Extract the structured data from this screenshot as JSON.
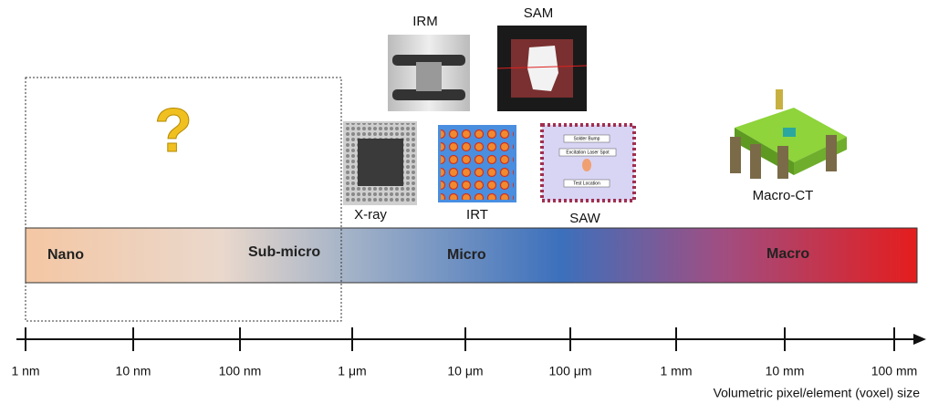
{
  "question_mark": "?",
  "bands": [
    "Nano",
    "Sub-micro",
    "Micro",
    "Macro"
  ],
  "techniques": [
    "IRM",
    "SAM",
    "X-ray",
    "IRT",
    "SAW",
    "Macro-CT"
  ],
  "saw_inset_labels": [
    "Solder Bump",
    "Excitation Laser Spot",
    "Test Location"
  ],
  "axis": {
    "ticks": [
      "1 nm",
      "10 nm",
      "100 nm",
      "1 μm",
      "10 μm",
      "100 μm",
      "1 mm",
      "10 mm",
      "100 mm"
    ],
    "title": "Volumetric pixel/element (voxel) size"
  }
}
